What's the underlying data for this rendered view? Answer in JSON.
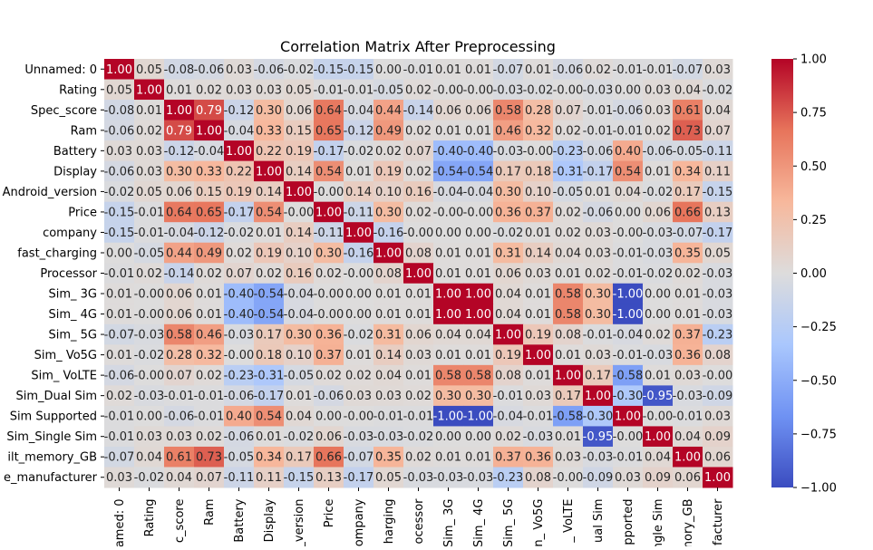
{
  "chart_data": {
    "type": "heatmap",
    "title": "Correlation Matrix After Preprocessing",
    "row_labels": [
      "Unnamed: 0",
      "Rating",
      "Spec_score",
      "Ram",
      "Battery",
      "Display",
      "Android_version",
      "Price",
      "company",
      "fast_charging",
      "Processor",
      "Sim_ 3G",
      "Sim_ 4G",
      "Sim_ 5G",
      "Sim_ Vo5G",
      "Sim_ VoLTE",
      "Sim_Dual Sim",
      "Sim Supported",
      "Sim_Single Sim",
      "Built_memory_GB",
      "Phone_manufacturer"
    ],
    "col_tick_labels": [
      "named: 0",
      "Rating",
      "c_score",
      "Ram",
      "Battery",
      "Display",
      "_version",
      "Price",
      "ompany",
      "harging",
      "ocessor",
      "Sim_ 3G",
      "Sim_ 4G",
      "Sim_ 5G",
      "n_ Vo5G",
      "_ VoLTE",
      "ual Sim",
      "pported",
      "ngle Sim",
      "nory_GB",
      "facturer"
    ],
    "row_tick_labels": [
      "Unnamed: 0",
      "Rating",
      "Spec_score",
      "Ram",
      "Battery",
      "Display",
      "Android_version",
      "Price",
      "company",
      "fast_charging",
      "Processor",
      "Sim_ 3G",
      "Sim_ 4G",
      "Sim_ 5G",
      "Sim_ Vo5G",
      "Sim_ VoLTE",
      "Sim_Dual Sim",
      "Sim Supported",
      "Sim_Single Sim",
      "ilt_memory_GB",
      "e_manufacturer"
    ],
    "cell_labels": [
      [
        "1.00",
        "0.05",
        "-0.08",
        "-0.06",
        "0.03",
        "-0.06",
        "-0.02",
        "-0.15",
        "-0.15",
        "0.00",
        "-0.01",
        "0.01",
        "0.01",
        "-0.07",
        "0.01",
        "-0.06",
        "0.02",
        "-0.01",
        "-0.01",
        "-0.07",
        "0.03"
      ],
      [
        "0.05",
        "1.00",
        "0.01",
        "0.02",
        "0.03",
        "0.03",
        "0.05",
        "-0.01",
        "-0.01",
        "-0.05",
        "0.02",
        "-0.00",
        "-0.00",
        "-0.03",
        "-0.02",
        "-0.00",
        "-0.03",
        "0.00",
        "0.03",
        "0.04",
        "-0.02"
      ],
      [
        "-0.08",
        "0.01",
        "1.00",
        "0.79",
        "-0.12",
        "0.30",
        "0.06",
        "0.64",
        "-0.04",
        "0.44",
        "-0.14",
        "0.06",
        "0.06",
        "0.58",
        "0.28",
        "0.07",
        "-0.01",
        "-0.06",
        "0.03",
        "0.61",
        "0.04"
      ],
      [
        "-0.06",
        "0.02",
        "0.79",
        "1.00",
        "-0.04",
        "0.33",
        "0.15",
        "0.65",
        "-0.12",
        "0.49",
        "0.02",
        "0.01",
        "0.01",
        "0.46",
        "0.32",
        "0.02",
        "-0.01",
        "-0.01",
        "0.02",
        "0.73",
        "0.07"
      ],
      [
        "0.03",
        "0.03",
        "-0.12",
        "-0.04",
        "1.00",
        "0.22",
        "0.19",
        "-0.17",
        "-0.02",
        "0.02",
        "0.07",
        "-0.40",
        "-0.40",
        "-0.03",
        "-0.00",
        "-0.23",
        "-0.06",
        "0.40",
        "-0.06",
        "-0.05",
        "-0.11"
      ],
      [
        "-0.06",
        "0.03",
        "0.30",
        "0.33",
        "0.22",
        "1.00",
        "0.14",
        "0.54",
        "0.01",
        "0.19",
        "0.02",
        "-0.54",
        "-0.54",
        "0.17",
        "0.18",
        "-0.31",
        "-0.17",
        "0.54",
        "0.01",
        "0.34",
        "0.11"
      ],
      [
        "-0.02",
        "0.05",
        "0.06",
        "0.15",
        "0.19",
        "0.14",
        "1.00",
        "-0.00",
        "0.14",
        "0.10",
        "0.16",
        "-0.04",
        "-0.04",
        "0.30",
        "0.10",
        "-0.05",
        "0.01",
        "0.04",
        "-0.02",
        "0.17",
        "-0.15"
      ],
      [
        "-0.15",
        "-0.01",
        "0.64",
        "0.65",
        "-0.17",
        "0.54",
        "-0.00",
        "1.00",
        "-0.11",
        "0.30",
        "0.02",
        "-0.00",
        "-0.00",
        "0.36",
        "0.37",
        "0.02",
        "-0.06",
        "0.00",
        "0.06",
        "0.66",
        "0.13"
      ],
      [
        "-0.15",
        "-0.01",
        "-0.04",
        "-0.12",
        "-0.02",
        "0.01",
        "0.14",
        "-0.11",
        "1.00",
        "-0.16",
        "-0.00",
        "0.00",
        "0.00",
        "-0.02",
        "0.01",
        "0.02",
        "0.03",
        "-0.00",
        "-0.03",
        "-0.07",
        "-0.17"
      ],
      [
        "0.00",
        "-0.05",
        "0.44",
        "0.49",
        "0.02",
        "0.19",
        "0.10",
        "0.30",
        "-0.16",
        "1.00",
        "0.08",
        "0.01",
        "0.01",
        "0.31",
        "0.14",
        "0.04",
        "0.03",
        "-0.01",
        "-0.03",
        "0.35",
        "0.05"
      ],
      [
        "-0.01",
        "0.02",
        "-0.14",
        "0.02",
        "0.07",
        "0.02",
        "0.16",
        "0.02",
        "-0.00",
        "0.08",
        "1.00",
        "0.01",
        "0.01",
        "0.06",
        "0.03",
        "0.01",
        "0.02",
        "-0.01",
        "-0.02",
        "0.02",
        "-0.03"
      ],
      [
        "0.01",
        "-0.00",
        "0.06",
        "0.01",
        "-0.40",
        "-0.54",
        "-0.04",
        "-0.00",
        "0.00",
        "0.01",
        "0.01",
        "1.00",
        "1.00",
        "0.04",
        "0.01",
        "0.58",
        "0.30",
        "-1.00",
        "0.00",
        "0.01",
        "-0.03"
      ],
      [
        "0.01",
        "-0.00",
        "0.06",
        "0.01",
        "-0.40",
        "-0.54",
        "-0.04",
        "-0.00",
        "0.00",
        "0.01",
        "0.01",
        "1.00",
        "1.00",
        "0.04",
        "0.01",
        "0.58",
        "0.30",
        "-1.00",
        "0.00",
        "0.01",
        "-0.03"
      ],
      [
        "-0.07",
        "-0.03",
        "0.58",
        "0.46",
        "-0.03",
        "0.17",
        "0.30",
        "0.36",
        "-0.02",
        "0.31",
        "0.06",
        "0.04",
        "0.04",
        "1.00",
        "0.19",
        "0.08",
        "-0.01",
        "-0.04",
        "0.02",
        "0.37",
        "-0.23"
      ],
      [
        "0.01",
        "-0.02",
        "0.28",
        "0.32",
        "-0.00",
        "0.18",
        "0.10",
        "0.37",
        "0.01",
        "0.14",
        "0.03",
        "0.01",
        "0.01",
        "0.19",
        "1.00",
        "0.01",
        "0.03",
        "-0.01",
        "-0.03",
        "0.36",
        "0.08"
      ],
      [
        "-0.06",
        "-0.00",
        "0.07",
        "0.02",
        "-0.23",
        "-0.31",
        "-0.05",
        "0.02",
        "0.02",
        "0.04",
        "0.01",
        "0.58",
        "0.58",
        "0.08",
        "0.01",
        "1.00",
        "0.17",
        "-0.58",
        "0.01",
        "0.03",
        "-0.00"
      ],
      [
        "0.02",
        "-0.03",
        "-0.01",
        "-0.01",
        "-0.06",
        "-0.17",
        "0.01",
        "-0.06",
        "0.03",
        "0.03",
        "0.02",
        "0.30",
        "0.30",
        "-0.01",
        "0.03",
        "0.17",
        "1.00",
        "-0.30",
        "-0.95",
        "-0.03",
        "-0.09"
      ],
      [
        "-0.01",
        "0.00",
        "-0.06",
        "-0.01",
        "0.40",
        "0.54",
        "0.04",
        "0.00",
        "-0.00",
        "-0.01",
        "-0.01",
        "-1.00",
        "-1.00",
        "-0.04",
        "-0.01",
        "-0.58",
        "-0.30",
        "1.00",
        "-0.00",
        "-0.01",
        "0.03"
      ],
      [
        "-0.01",
        "0.03",
        "0.03",
        "0.02",
        "-0.06",
        "0.01",
        "-0.02",
        "0.06",
        "-0.03",
        "-0.03",
        "-0.02",
        "0.00",
        "0.00",
        "0.02",
        "-0.03",
        "0.01",
        "-0.95",
        "-0.00",
        "1.00",
        "0.04",
        "0.09"
      ],
      [
        "-0.07",
        "0.04",
        "0.61",
        "0.73",
        "-0.05",
        "0.34",
        "0.17",
        "0.66",
        "-0.07",
        "0.35",
        "0.02",
        "0.01",
        "0.01",
        "0.37",
        "0.36",
        "0.03",
        "-0.03",
        "-0.01",
        "0.04",
        "1.00",
        "0.06"
      ],
      [
        "0.03",
        "-0.02",
        "0.04",
        "0.07",
        "-0.11",
        "0.11",
        "-0.15",
        "0.13",
        "-0.17",
        "0.05",
        "-0.03",
        "-0.03",
        "-0.03",
        "-0.23",
        "0.08",
        "-0.00",
        "-0.09",
        "0.03",
        "0.09",
        "0.06",
        "1.00"
      ]
    ],
    "vmin": -1.0,
    "vmax": 1.0,
    "colormap": "coolwarm",
    "colormap_stops": [
      "#3b4cc0",
      "#6f92f3",
      "#aac7fd",
      "#dddcdc",
      "#f7b89c",
      "#e7745b",
      "#b40426"
    ],
    "colorbar_ticks": [
      1.0,
      0.75,
      0.5,
      0.25,
      0.0,
      -0.25,
      -0.5,
      -0.75,
      -1.0
    ],
    "colorbar_tick_labels": [
      "1.00",
      "0.75",
      "0.50",
      "0.25",
      "0.00",
      "−0.25",
      "−0.50",
      "−0.75",
      "−1.00"
    ]
  }
}
